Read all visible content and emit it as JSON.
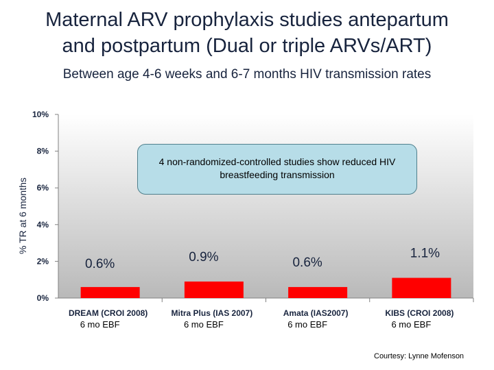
{
  "title_line1": "Maternal ARV prophylaxis studies antepartum",
  "title_line2": "and postpartum (Dual or triple ARVs/ART)",
  "subtitle": "Between age 4-6 weeks and 6-7 months HIV transmission rates",
  "callout": "4 non-randomized-controlled studies show reduced HIV breastfeeding transmission",
  "credit": "Courtesy: Lynne Mofenson",
  "colors": {
    "bar": "#ff0000",
    "text": "#17233d",
    "callout_bg": "#b7dde8"
  },
  "chart_data": {
    "type": "bar",
    "ylabel": "% TR at 6 months",
    "ylim": [
      0,
      10
    ],
    "yticks": [
      "0%",
      "2%",
      "4%",
      "6%",
      "8%",
      "10%"
    ],
    "categories": [
      "DREAM (CROI 2008)",
      "Mitra Plus (IAS 2007)",
      "Amata (IAS2007)",
      "KIBS (CROI 2008)"
    ],
    "sublabels": [
      "6 mo EBF",
      "6 mo EBF",
      "6 mo EBF",
      "6 mo EBF"
    ],
    "values": [
      0.6,
      0.9,
      0.6,
      1.1
    ],
    "data_labels": [
      "0.6%",
      "0.9%",
      "0.6%",
      "1.1%"
    ]
  }
}
